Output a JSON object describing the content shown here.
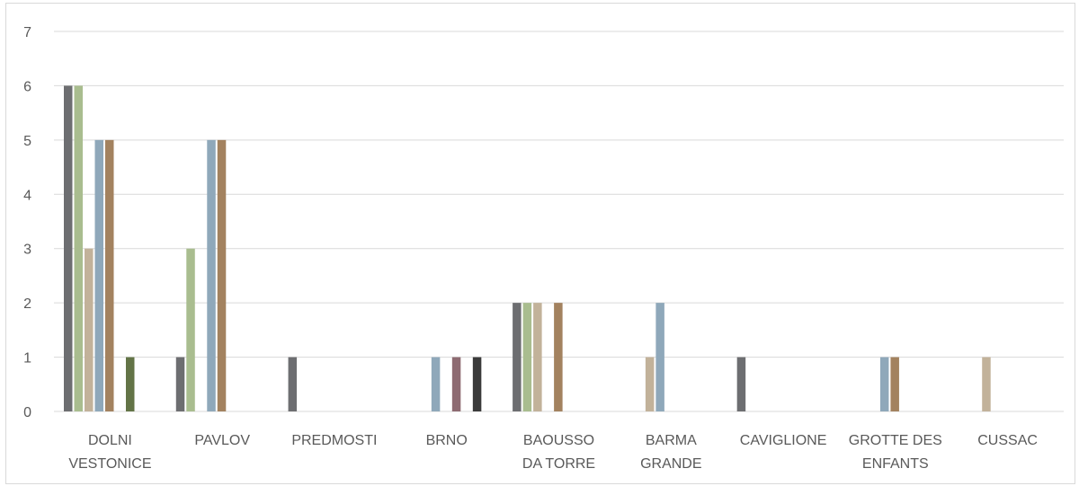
{
  "chart_data": {
    "type": "bar",
    "title": "",
    "xlabel": "",
    "ylabel": "",
    "ylim": [
      0,
      7
    ],
    "yticks": [
      0,
      1,
      2,
      3,
      4,
      5,
      6,
      7
    ],
    "grid": true,
    "legend": "none",
    "categories": [
      [
        "DOLNI",
        "VESTONICE"
      ],
      [
        "PAVLOV"
      ],
      [
        "PREDMOSTI"
      ],
      [
        "BRNO"
      ],
      [
        "BAOUSSO",
        "DA TORRE"
      ],
      [
        "BARMA",
        "GRANDE"
      ],
      [
        "CAVIGLIONE"
      ],
      [
        "GROTTE DES",
        "ENFANTS"
      ],
      [
        "CUSSAC"
      ]
    ],
    "series": [
      {
        "color": "#6d6e71",
        "values": [
          6,
          1,
          1,
          0,
          2,
          0,
          1,
          0,
          0
        ]
      },
      {
        "color": "#a9bd8f",
        "values": [
          6,
          3,
          0,
          0,
          2,
          0,
          0,
          0,
          0
        ]
      },
      {
        "color": "#c2b29a",
        "values": [
          3,
          0,
          0,
          0,
          2,
          1,
          0,
          0,
          1
        ]
      },
      {
        "color": "#8fa8ba",
        "values": [
          5,
          5,
          0,
          1,
          0,
          2,
          0,
          1,
          0
        ]
      },
      {
        "color": "#a3825f",
        "values": [
          5,
          5,
          0,
          0,
          2,
          0,
          0,
          1,
          0
        ]
      },
      {
        "color": "#8e6b72",
        "values": [
          0,
          0,
          0,
          1,
          0,
          0,
          0,
          0,
          0
        ]
      },
      {
        "color": "#637447",
        "values": [
          1,
          0,
          0,
          0,
          0,
          0,
          0,
          0,
          0
        ]
      },
      {
        "color": "#3b3b3b",
        "values": [
          0,
          0,
          0,
          1,
          0,
          0,
          0,
          0,
          0
        ]
      }
    ],
    "colors": {
      "gridline": "#d9d9d9",
      "text": "#595959",
      "border": "#d9d9d9"
    }
  }
}
